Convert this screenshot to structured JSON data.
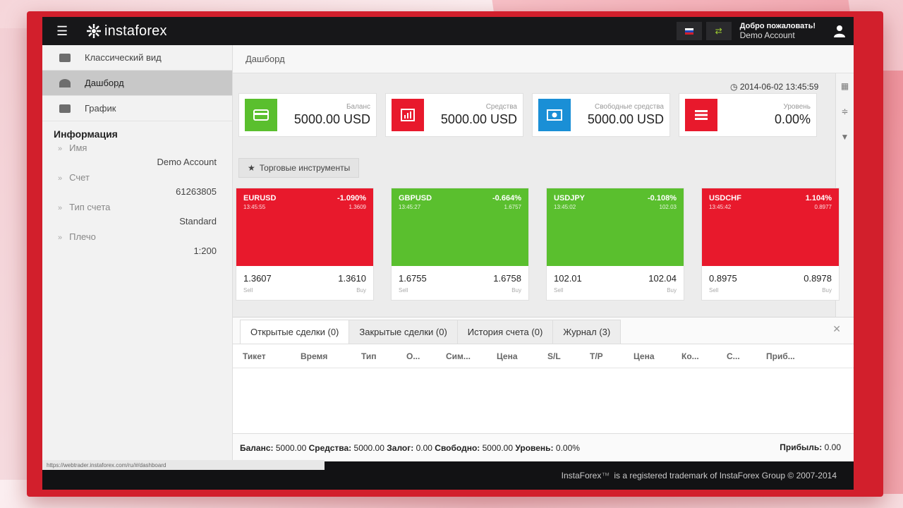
{
  "header": {
    "logo_text": "instaforex",
    "welcome_line": "Добро пожаловать!",
    "account_name": "Demo Account"
  },
  "sidebar": {
    "items": [
      {
        "label": "Классический вид"
      },
      {
        "label": "Дашборд"
      },
      {
        "label": "График"
      }
    ],
    "info_title": "Информация",
    "info": [
      {
        "label": "Имя",
        "value": "Demo Account"
      },
      {
        "label": "Счет",
        "value": "61263805"
      },
      {
        "label": "Тип счета",
        "value": "Standard"
      },
      {
        "label": "Плечо",
        "value": "1:200"
      }
    ]
  },
  "content": {
    "breadcrumb": "Дашборд",
    "datetime": "2014-06-02 13:45:59",
    "stats": [
      {
        "label": "Баланс",
        "value": "5000.00 USD",
        "color": "#5abf2e"
      },
      {
        "label": "Средства",
        "value": "5000.00 USD",
        "color": "#e8192c"
      },
      {
        "label": "Свободные средства",
        "value": "5000.00 USD",
        "color": "#1a8fd6"
      },
      {
        "label": "Уровень",
        "value": "0.00%",
        "color": "#e8192c"
      }
    ],
    "tools_label": "Торговые инструменты",
    "quotes": [
      {
        "symbol": "EURUSD",
        "change": "-1.090%",
        "time": "13:45:55",
        "high": "1.3609",
        "sell": "1.3607",
        "buy": "1.3610",
        "color": "red"
      },
      {
        "symbol": "GBPUSD",
        "change": "-0.664%",
        "time": "13:45:27",
        "high": "1.6757",
        "sell": "1.6755",
        "buy": "1.6758",
        "color": "green"
      },
      {
        "symbol": "USDJPY",
        "change": "-0.108%",
        "time": "13:45:02",
        "high": "102.03",
        "sell": "102.01",
        "buy": "102.04",
        "color": "green"
      },
      {
        "symbol": "USDCHF",
        "change": "1.104%",
        "time": "13:45:42",
        "high": "0.8977",
        "sell": "0.8975",
        "buy": "0.8978",
        "color": "red"
      }
    ],
    "sell_label": "Sell",
    "buy_label": "Buy"
  },
  "panel": {
    "tabs": [
      {
        "label": "Открытые сделки (0)"
      },
      {
        "label": "Закрытые сделки (0)"
      },
      {
        "label": "История счета (0)"
      },
      {
        "label": "Журнал (3)"
      }
    ],
    "columns": [
      "Тикет",
      "Время",
      "Тип",
      "О...",
      "Сим...",
      "Цена",
      "S/L",
      "T/P",
      "Цена",
      "Ко...",
      "С...",
      "Приб..."
    ],
    "summary": {
      "balance_label": "Баланс:",
      "balance": "5000.00",
      "equity_label": "Средства:",
      "equity": "5000.00",
      "margin_label": "Залог:",
      "margin": "0.00",
      "free_label": "Свободно:",
      "free": "5000.00",
      "level_label": "Уровень:",
      "level": "0.00%",
      "profit_label": "Прибыль:",
      "profit": "0.00"
    }
  },
  "footer": {
    "brand": "InstaForex",
    "tm": "™",
    "text": "is a registered trademark of InstaForex Group © 2007-2014",
    "status_url": "https://webtrader.instaforex.com/ru/#/dashboard"
  }
}
